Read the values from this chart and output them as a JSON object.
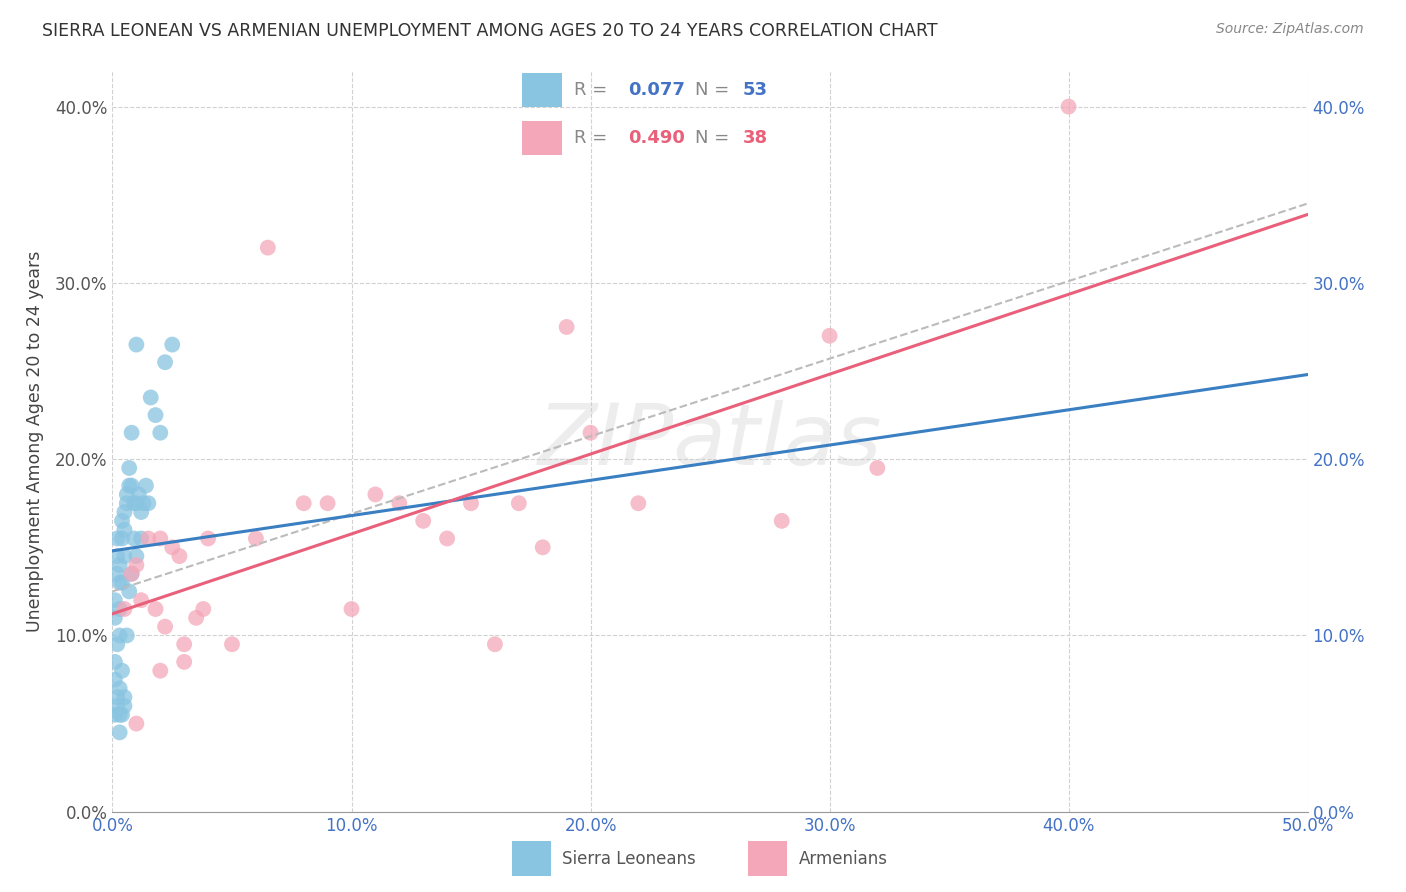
{
  "title": "SIERRA LEONEAN VS ARMENIAN UNEMPLOYMENT AMONG AGES 20 TO 24 YEARS CORRELATION CHART",
  "source": "Source: ZipAtlas.com",
  "ylabel": "Unemployment Among Ages 20 to 24 years",
  "xlim": [
    0.0,
    0.5
  ],
  "ylim": [
    0.0,
    0.42
  ],
  "sl_color": "#89c4e1",
  "arm_color": "#f4a7b9",
  "sl_line_color": "#3a7fc1",
  "arm_line_color": "#e8607a",
  "dash_line_color": "#bbbbbb",
  "background_color": "#ffffff",
  "watermark": "ZIPatlas",
  "sierra_x": [
    0.001,
    0.001,
    0.001,
    0.001,
    0.002,
    0.002,
    0.002,
    0.002,
    0.002,
    0.003,
    0.003,
    0.003,
    0.003,
    0.003,
    0.004,
    0.004,
    0.004,
    0.004,
    0.005,
    0.005,
    0.005,
    0.005,
    0.006,
    0.006,
    0.006,
    0.007,
    0.007,
    0.007,
    0.008,
    0.008,
    0.008,
    0.009,
    0.009,
    0.01,
    0.01,
    0.01,
    0.011,
    0.012,
    0.012,
    0.013,
    0.014,
    0.015,
    0.016,
    0.018,
    0.02,
    0.022,
    0.025,
    0.001,
    0.002,
    0.003,
    0.003,
    0.004,
    0.005
  ],
  "sierra_y": [
    0.12,
    0.11,
    0.085,
    0.075,
    0.155,
    0.145,
    0.135,
    0.095,
    0.065,
    0.14,
    0.13,
    0.115,
    0.1,
    0.07,
    0.165,
    0.155,
    0.13,
    0.08,
    0.17,
    0.16,
    0.145,
    0.065,
    0.18,
    0.175,
    0.1,
    0.195,
    0.185,
    0.125,
    0.215,
    0.185,
    0.135,
    0.175,
    0.155,
    0.265,
    0.175,
    0.145,
    0.18,
    0.17,
    0.155,
    0.175,
    0.185,
    0.175,
    0.235,
    0.225,
    0.215,
    0.255,
    0.265,
    0.055,
    0.06,
    0.055,
    0.045,
    0.055,
    0.06
  ],
  "armenian_x": [
    0.005,
    0.008,
    0.01,
    0.012,
    0.015,
    0.018,
    0.02,
    0.022,
    0.025,
    0.028,
    0.03,
    0.035,
    0.038,
    0.04,
    0.05,
    0.06,
    0.065,
    0.08,
    0.09,
    0.1,
    0.11,
    0.12,
    0.13,
    0.14,
    0.15,
    0.16,
    0.17,
    0.18,
    0.19,
    0.2,
    0.22,
    0.28,
    0.3,
    0.32,
    0.4,
    0.01,
    0.02,
    0.03
  ],
  "armenian_y": [
    0.115,
    0.135,
    0.14,
    0.12,
    0.155,
    0.115,
    0.155,
    0.105,
    0.15,
    0.145,
    0.095,
    0.11,
    0.115,
    0.155,
    0.095,
    0.155,
    0.32,
    0.175,
    0.175,
    0.115,
    0.18,
    0.175,
    0.165,
    0.155,
    0.175,
    0.095,
    0.175,
    0.15,
    0.275,
    0.215,
    0.175,
    0.165,
    0.27,
    0.195,
    0.4,
    0.05,
    0.08,
    0.085
  ]
}
